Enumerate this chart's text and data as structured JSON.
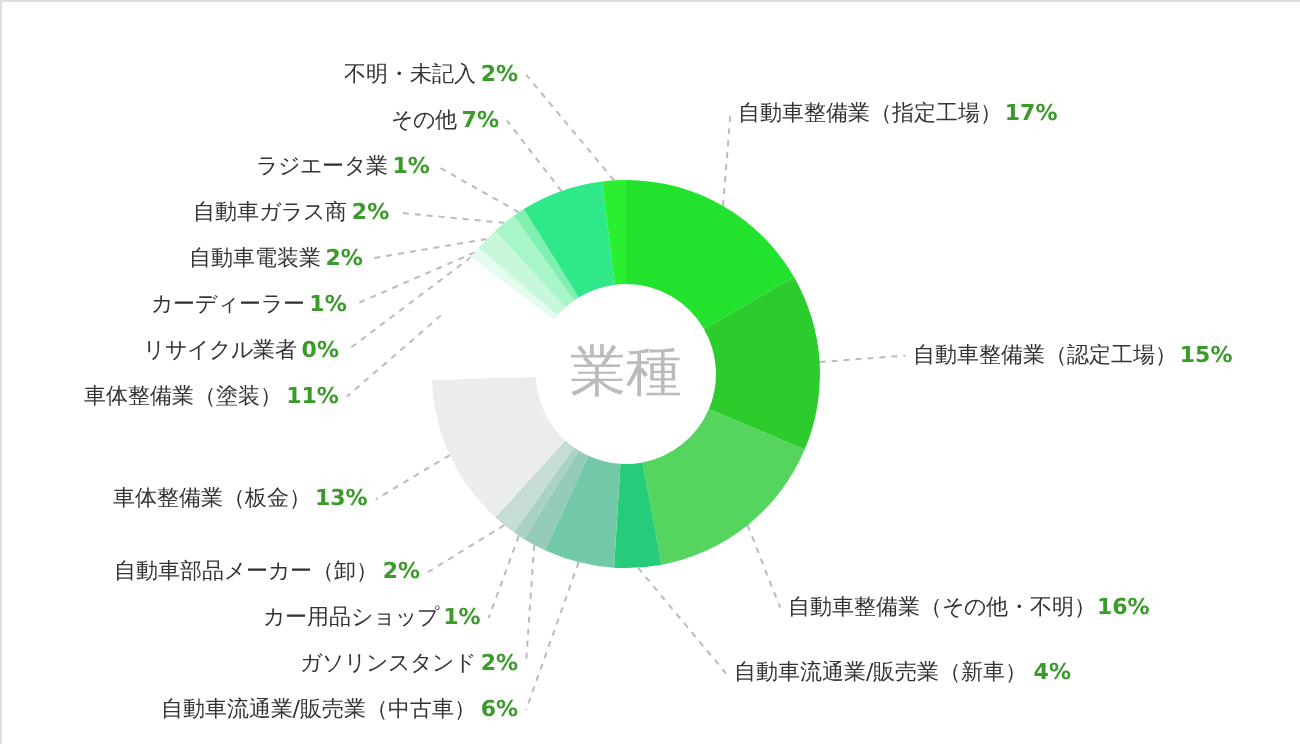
{
  "chart_data": {
    "type": "donut",
    "categories": [
      "自動車整備業（指定工場）",
      "自動車整備業（認定工場）",
      "自動車整備業（その他・不明）",
      "自動車流通業/販売業（新車）",
      "自動車流通業/販売業（中古車）",
      "ガソリンスタンド",
      "カー用品ショップ",
      "自動車部品メーカー（卸）",
      "車体整備業（板金）",
      "車体整備業（塗装）",
      "リサイクル業者",
      "カーディーラー",
      "自動車電装業",
      "自動車ガラス商",
      "ラジエータ業",
      "その他",
      "不明・未記入"
    ],
    "values": [
      17,
      15,
      16,
      4,
      6,
      2,
      1,
      2,
      13,
      11,
      0,
      1,
      2,
      2,
      1,
      7,
      2
    ],
    "value_labels": [
      "17%",
      "15%",
      "16%",
      "4%",
      "6%",
      "2%",
      "1%",
      "2%",
      "13%",
      "11%",
      "0%",
      "1%",
      "2%",
      "2%",
      "1%",
      "7%",
      "2%"
    ],
    "colors": [
      "#22e22e",
      "#2ccc2c",
      "#55d45e",
      "#25cc7a",
      "#72c9a8",
      "#95ccb8",
      "#a8d2c4",
      "#c5ddd5",
      "#ebeded",
      "#ffffff",
      "#f2fff6",
      "#e4fcee",
      "#c8f8dc",
      "#a8f5c9",
      "#80f0b0",
      "#2ee88a",
      "#2aee30"
    ],
    "annotations": [
      "業種"
    ]
  }
}
